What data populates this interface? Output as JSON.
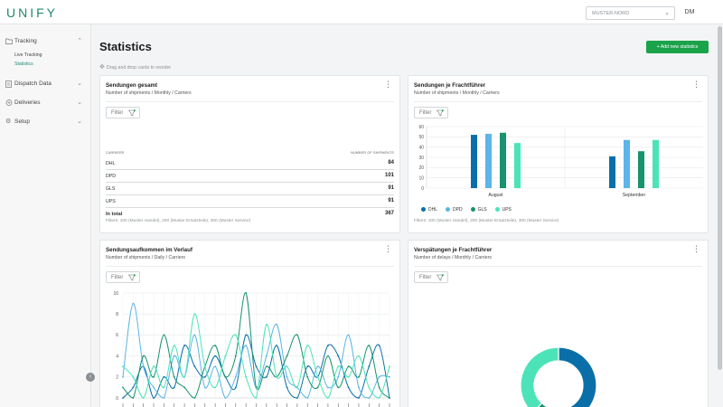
{
  "app": {
    "logo": "UNIFY"
  },
  "header": {
    "branch_value": "MUSTER-NORD",
    "avatar_initials": "DM"
  },
  "sidebar": {
    "items": [
      {
        "label": "Tracking",
        "icon": "folder-icon"
      },
      {
        "label": "Dispatch Data",
        "icon": "document-icon"
      },
      {
        "label": "Deliveries",
        "icon": "truck-icon"
      },
      {
        "label": "Setup",
        "icon": "gear-icon"
      }
    ],
    "subitems": [
      {
        "label": "Live Tracking"
      },
      {
        "label": "Statistics"
      }
    ]
  },
  "main": {
    "title": "Statistics",
    "add_button": "+ Add new statistics",
    "hint": "Drag and drop cards to reorder",
    "filter_label": "Filter"
  },
  "colors": {
    "DHL": "#0a6fa8",
    "DPD": "#5bb5e8",
    "GLS": "#17936d",
    "UPS": "#4de3b8",
    "accent": "#1aa34a"
  },
  "cards": {
    "total": {
      "title": "Sendungen gesamt",
      "subtitle": "Number of shipments / Monthly / Carriers",
      "col_carrier": "CARRIERS",
      "col_count": "NUMBER OF SHIPMENTS",
      "rows": [
        {
          "carrier": "DHL",
          "count": "84"
        },
        {
          "carrier": "DPD",
          "count": "101"
        },
        {
          "carrier": "GLS",
          "count": "91"
        },
        {
          "carrier": "UPS",
          "count": "91"
        }
      ],
      "total_label": "In total",
      "total_value": "367",
      "footnote": "Filters: 100 (Muster Handel), 200 (Muster Ersatzteile), 300 (Muster Service)"
    },
    "by_carrier": {
      "title": "Sendungen je Frachtführer",
      "subtitle": "Number of shipments / Monthly / Carriers",
      "footnote": "Filters: 100 (Muster Handel), 200 (Muster Ersatzteile), 300 (Muster Service)",
      "chart_data": {
        "type": "bar",
        "categories": [
          "August",
          "September"
        ],
        "series": [
          {
            "name": "DHL",
            "values": [
              52,
              31
            ]
          },
          {
            "name": "DPD",
            "values": [
              53,
              47
            ]
          },
          {
            "name": "GLS",
            "values": [
              54,
              36
            ]
          },
          {
            "name": "UPS",
            "values": [
              44,
              47
            ]
          }
        ],
        "ylim": [
          0,
          60
        ],
        "yticks": [
          0,
          10,
          20,
          30,
          40,
          50,
          60
        ],
        "grid": true,
        "legend": "bottom-left"
      }
    },
    "daily": {
      "title": "Sendungsaufkommen im Verlauf",
      "subtitle": "Number of shipments / Daily / Carriers",
      "chart_data": {
        "type": "line",
        "x_count": 27,
        "series": [
          {
            "name": "DHL",
            "values": [
              0,
              1,
              3,
              0,
              2,
              1,
              5,
              3,
              2,
              4,
              2,
              1,
              6,
              3,
              2,
              5,
              1,
              0,
              3,
              2,
              5,
              4,
              1,
              0,
              3,
              5,
              0
            ]
          },
          {
            "name": "DPD",
            "values": [
              2,
              9,
              3,
              1,
              0,
              4,
              2,
              6,
              1,
              3,
              0,
              2,
              5,
              1,
              4,
              7,
              2,
              1,
              0,
              3,
              1,
              2,
              6,
              1,
              0,
              2,
              2
            ]
          },
          {
            "name": "GLS",
            "values": [
              1,
              0,
              4,
              2,
              6,
              2,
              1,
              0,
              3,
              5,
              2,
              4,
              10,
              1,
              3,
              2,
              4,
              6,
              2,
              1,
              4,
              1,
              3,
              2,
              5,
              1,
              0
            ]
          },
          {
            "name": "UPS",
            "values": [
              3,
              2,
              0,
              3,
              1,
              5,
              2,
              8,
              3,
              1,
              4,
              6,
              2,
              0,
              7,
              2,
              3,
              1,
              5,
              2,
              0,
              3,
              2,
              4,
              1,
              0,
              3
            ]
          }
        ],
        "ylim": [
          0,
          10
        ],
        "yticks": [
          0,
          2,
          4,
          6,
          8,
          10
        ],
        "grid": true
      }
    },
    "delays": {
      "title": "Verspätungen je Frachtführer",
      "subtitle": "Number of delays / Monthly / Carriers",
      "chart_data": {
        "type": "pie",
        "series": [
          {
            "name": "DHL",
            "value": 50
          },
          {
            "name": "GLS",
            "value": 12
          },
          {
            "name": "UPS",
            "value": 38
          }
        ],
        "donut": true
      }
    }
  }
}
